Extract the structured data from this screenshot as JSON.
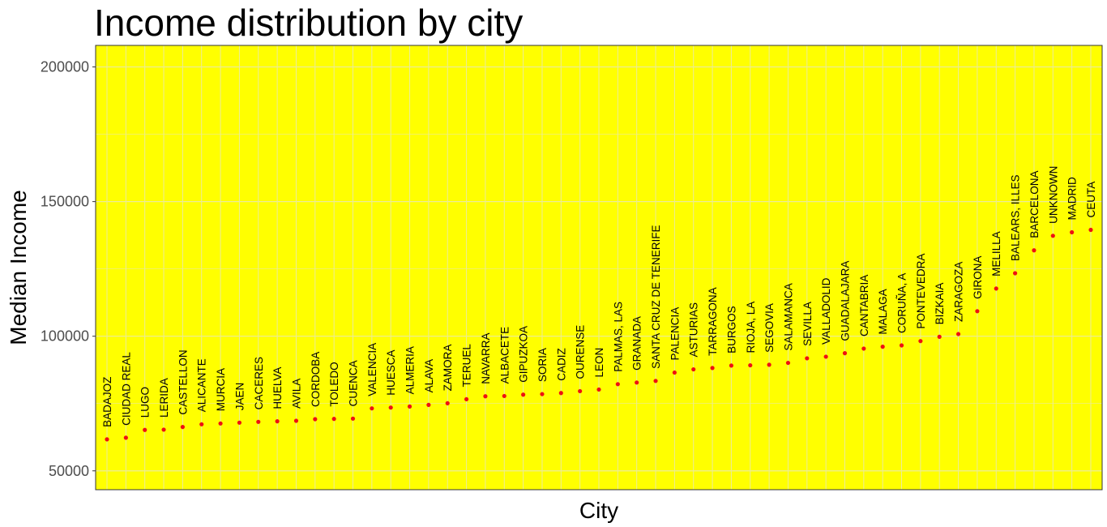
{
  "chart_data": {
    "type": "scatter",
    "title": "Income distribution by city",
    "xlabel": "City",
    "ylabel": "Median Income",
    "ylim": [
      43000,
      208000
    ],
    "yticks": [
      50000,
      100000,
      150000,
      200000
    ],
    "grid": true,
    "colors": {
      "panel": "#ffff00",
      "grid": "#ebeb9b",
      "point": "#ee1111"
    },
    "categories": [
      "BADAJOZ",
      "CIUDAD REAL",
      "LUGO",
      "LERIDA",
      "CASTELLON",
      "ALICANTE",
      "MURCIA",
      "JAEN",
      "CACERES",
      "HUELVA",
      "AVILA",
      "CORDOBA",
      "TOLEDO",
      "CUENCA",
      "VALENCIA",
      "HUESCA",
      "ALMERIA",
      "ALAVA",
      "ZAMORA",
      "TERUEL",
      "NAVARRA",
      "ALBACETE",
      "GIPUZKOA",
      "SORIA",
      "CADIZ",
      "OURENSE",
      "LEON",
      "PALMAS, LAS",
      "GRANADA",
      "SANTA CRUZ DE TENERIFE",
      "PALENCIA",
      "ASTURIAS",
      "TARRAGONA",
      "BURGOS",
      "RIOJA, LA",
      "SEGOVIA",
      "SALAMANCA",
      "SEVILLA",
      "VALLADOLID",
      "GUADALAJARA",
      "CANTABRIA",
      "MALAGA",
      "CORUÑA, A",
      "PONTEVEDRA",
      "BIZKAIA",
      "ZARAGOZA",
      "GIRONA",
      "MELILLA",
      "BALEARS, ILLES",
      "BARCELONA",
      "UNKNOWN",
      "MADRID",
      "CEUTA"
    ],
    "values": [
      61700,
      62300,
      65200,
      65300,
      66300,
      67300,
      67600,
      67900,
      68200,
      68400,
      68600,
      69200,
      69300,
      69400,
      73200,
      73500,
      73900,
      74500,
      75100,
      76600,
      77700,
      77800,
      78300,
      78500,
      78900,
      79600,
      80200,
      82200,
      82800,
      83400,
      86500,
      87700,
      88200,
      89100,
      89200,
      89400,
      90100,
      91800,
      92400,
      93700,
      95400,
      96100,
      96600,
      98200,
      99800,
      100800,
      109300,
      117700,
      123400,
      131900,
      137300,
      138600,
      139500
    ]
  }
}
